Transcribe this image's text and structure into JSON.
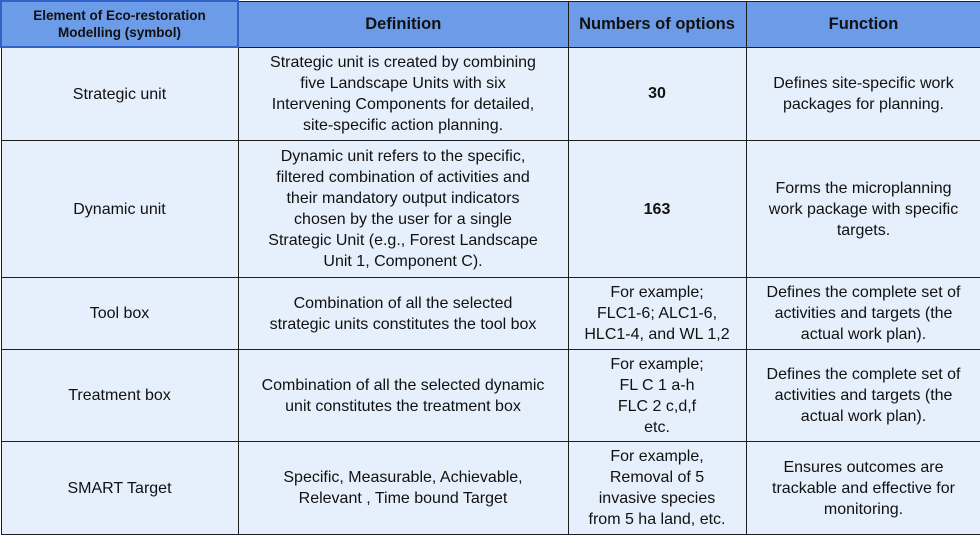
{
  "table": {
    "headers": [
      "Element of Eco-restoration Modelling (symbol)",
      "Definition",
      "Numbers of options",
      "Function"
    ],
    "rows": [
      {
        "element": "Strategic unit",
        "definition": [
          "Strategic unit is created by combining",
          "five Landscape Units with six",
          "Intervening Components for detailed,",
          "site-specific action planning."
        ],
        "options": [
          "30"
        ],
        "options_bold": true,
        "function": [
          "Defines site-specific work",
          "packages for planning."
        ]
      },
      {
        "element": "Dynamic unit",
        "definition": [
          "Dynamic unit refers to the specific,",
          "filtered combination of activities and",
          "their mandatory output indicators",
          "chosen by the user for a single",
          "Strategic Unit (e.g., Forest Landscape",
          "Unit 1, Component C)."
        ],
        "options": [
          "163"
        ],
        "options_bold": true,
        "function": [
          "Forms the microplanning",
          "work package with specific",
          "targets."
        ]
      },
      {
        "element": "Tool box",
        "definition": [
          "Combination of all the selected",
          "strategic units constitutes the tool box"
        ],
        "options": [
          "For example;",
          "FLC1-6; ALC1-6,",
          "HLC1-4, and WL 1,2"
        ],
        "options_bold": false,
        "function": [
          "Defines the complete set of",
          "activities and targets (the",
          "actual work plan)."
        ]
      },
      {
        "element": "Treatment box",
        "definition": [
          "Combination of all the selected dynamic",
          "unit constitutes the treatment box"
        ],
        "options": [
          "For example;",
          "FL C 1 a-h",
          "FLC 2 c,d,f",
          "etc."
        ],
        "options_bold": false,
        "function": [
          "Defines the complete set of",
          "activities and targets (the",
          "actual work plan)."
        ]
      },
      {
        "element": "SMART Target",
        "definition": [
          "Specific, Measurable, Achievable,",
          "Relevant , Time bound Target"
        ],
        "options": [
          "For example,",
          "Removal of 5",
          "invasive species",
          "from 5 ha land, etc."
        ],
        "options_bold": false,
        "function": [
          "Ensures outcomes are",
          "trackable and effective for",
          "monitoring."
        ]
      }
    ]
  },
  "colors": {
    "header_bg": "#6c9be8",
    "cell_bg": "#e6effc",
    "border": "#1d1d1d"
  }
}
